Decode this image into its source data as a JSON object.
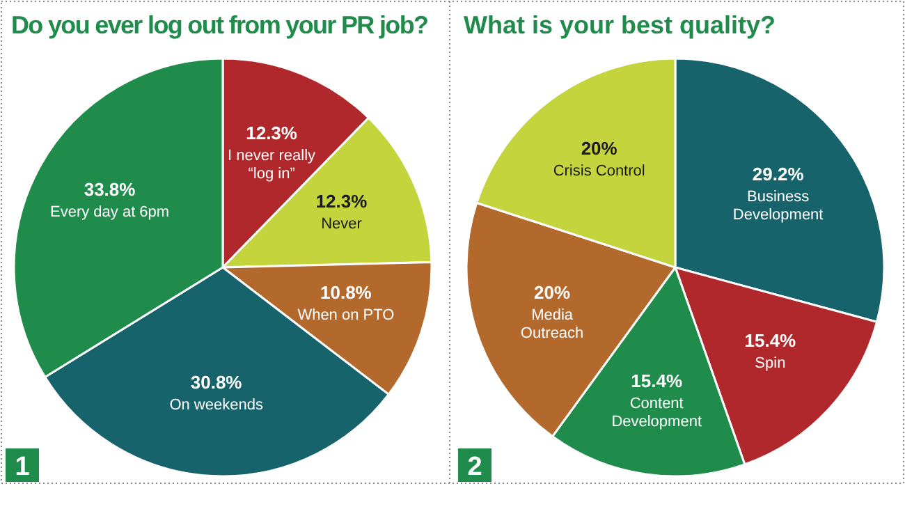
{
  "chart_data": [
    {
      "type": "pie",
      "title": "Do you ever log out from your PR job?",
      "categories": [
        "I never really\n“log in”",
        "Never",
        "When on PTO",
        "On weekends",
        "Every day at 6pm"
      ],
      "values": [
        12.3,
        12.3,
        10.8,
        30.8,
        33.8
      ],
      "value_labels": [
        "12.3%",
        "12.3%",
        "10.8%",
        "30.8%",
        "33.8%"
      ],
      "colors": [
        "#b0282b",
        "#c4d43c",
        "#b3682c",
        "#17636b",
        "#1f8c4b"
      ],
      "annotations": [
        "1"
      ]
    },
    {
      "type": "pie",
      "title": "What is your best quality?",
      "categories": [
        "Business\nDevelopment",
        "Spin",
        "Content\nDevelopment",
        "Media\nOutreach",
        "Crisis Control"
      ],
      "values": [
        29.2,
        15.4,
        15.4,
        20,
        20
      ],
      "value_labels": [
        "29.2%",
        "15.4%",
        "15.4%",
        "20%",
        "20%"
      ],
      "colors": [
        "#17636b",
        "#b0282b",
        "#1f8c4b",
        "#b3682c",
        "#c4d43c"
      ],
      "annotations": [
        "2"
      ]
    }
  ]
}
